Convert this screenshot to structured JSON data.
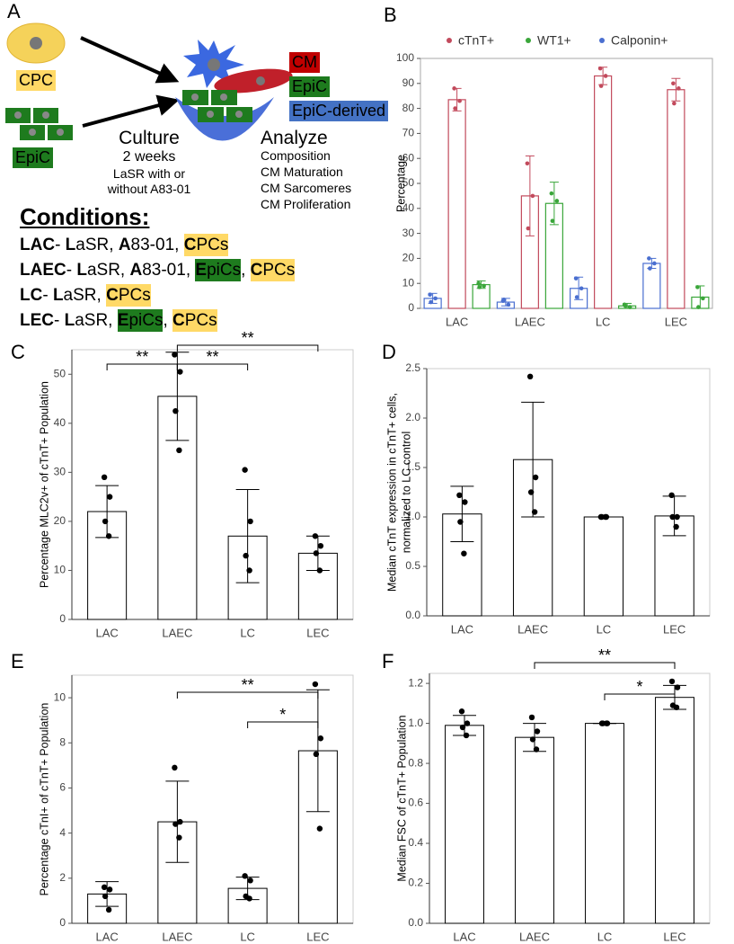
{
  "diagram": {
    "panel": "A",
    "cpc": "CPC",
    "epic": "EpiC",
    "culture": [
      "Culture",
      "2 weeks",
      "LaSR with or",
      "without A83-01"
    ],
    "legend": [
      "CM",
      "EpiC",
      "EpiC-derived"
    ],
    "analyze": [
      "Analyze",
      "Composition",
      "CM Maturation",
      "CM Sarcomeres",
      "CM Proliferation"
    ],
    "conditions_title": "Conditions:",
    "conditions": [
      [
        {
          "t": "LAC",
          "b": true
        },
        {
          "t": "- "
        },
        {
          "t": "L",
          "b": true
        },
        {
          "t": "aSR, "
        },
        {
          "t": "A",
          "b": true
        },
        {
          "t": "83-01, "
        },
        {
          "t": "C",
          "b": true,
          "hl": "yellow"
        },
        {
          "t": "PCs",
          "hl": "yellow"
        }
      ],
      [
        {
          "t": "LAEC",
          "b": true
        },
        {
          "t": "- "
        },
        {
          "t": "L",
          "b": true
        },
        {
          "t": "aSR, "
        },
        {
          "t": "A",
          "b": true
        },
        {
          "t": "83-01, "
        },
        {
          "t": "E",
          "b": true,
          "hl": "green"
        },
        {
          "t": "piCs",
          "hl": "green"
        },
        {
          "t": ", "
        },
        {
          "t": "C",
          "b": true,
          "hl": "yellow"
        },
        {
          "t": "PCs",
          "hl": "yellow"
        }
      ],
      [
        {
          "t": "LC",
          "b": true
        },
        {
          "t": "- "
        },
        {
          "t": "L",
          "b": true
        },
        {
          "t": "aSR, "
        },
        {
          "t": "C",
          "b": true,
          "hl": "yellow"
        },
        {
          "t": "PCs",
          "hl": "yellow"
        }
      ],
      [
        {
          "t": "LEC",
          "b": true
        },
        {
          "t": "- "
        },
        {
          "t": "L",
          "b": true
        },
        {
          "t": "aSR, "
        },
        {
          "t": "E",
          "b": true,
          "hl": "green"
        },
        {
          "t": "piCs",
          "hl": "green"
        },
        {
          "t": ", "
        },
        {
          "t": "C",
          "b": true,
          "hl": "yellow"
        },
        {
          "t": "PCs",
          "hl": "yellow"
        }
      ]
    ]
  },
  "chart_data": [
    {
      "type": "bar",
      "panel": "B",
      "y_label": [
        "Percentage"
      ],
      "categories": [
        "LAC",
        "LAEC",
        "LC",
        "LEC"
      ],
      "ylim": [
        0,
        100
      ],
      "yticks": [
        0,
        10,
        20,
        30,
        40,
        50,
        60,
        70,
        80,
        90,
        100
      ],
      "series": [
        {
          "name": "cTnT+",
          "color": "#c24a5c",
          "values": [
            83.5,
            45,
            93,
            87.5
          ],
          "errors": [
            4.5,
            16,
            3.5,
            4.5
          ],
          "points": [
            [
              88,
              83,
              80
            ],
            [
              58,
              45,
              32
            ],
            [
              96,
              93,
              89
            ],
            [
              90,
              88,
              82
            ]
          ]
        },
        {
          "name": "WT1+",
          "color": "#3aa63a",
          "values": [
            9.5,
            42,
            1,
            4.5
          ],
          "errors": [
            1.5,
            8.5,
            1,
            4.5
          ],
          "points": [
            [
              10,
              9,
              8.5
            ],
            [
              46,
              43,
              35
            ],
            [
              1.5,
              0.5,
              1
            ],
            [
              8.5,
              4,
              0.5
            ]
          ]
        },
        {
          "name": "Calponin+",
          "color": "#4a6fd0",
          "values": [
            4,
            2.5,
            8,
            18
          ],
          "errors": [
            2,
            1.5,
            4.5,
            2
          ],
          "points": [
            [
              5.5,
              4,
              2.5
            ],
            [
              3,
              1.5,
              3.5
            ],
            [
              12,
              8,
              4.5
            ],
            [
              20,
              18,
              16
            ]
          ]
        }
      ]
    },
    {
      "type": "bar",
      "panel": "C",
      "y_label": [
        "Percentage MLC2v+ of cTnT+ Population"
      ],
      "categories": [
        "LAC",
        "LAEC",
        "LC",
        "LEC"
      ],
      "ylim": [
        0,
        55
      ],
      "yticks": [
        0,
        10,
        20,
        30,
        40,
        50
      ],
      "color": "#000000",
      "values": [
        22,
        45.5,
        17,
        13.5
      ],
      "errors": [
        5.3,
        9,
        9.5,
        3.5
      ],
      "points": [
        [
          29,
          25,
          20,
          17
        ],
        [
          54,
          50.5,
          42.5,
          34.5
        ],
        [
          30.5,
          20,
          13,
          10
        ],
        [
          17,
          15,
          13.5,
          10
        ]
      ],
      "brackets": [
        {
          "from": "LAC",
          "to": "LAEC",
          "label": "**"
        },
        {
          "from": "LAEC",
          "to": "LC",
          "label": "**"
        },
        {
          "from": "LAEC",
          "to": "LEC",
          "label": "**"
        }
      ]
    },
    {
      "type": "bar",
      "panel": "D",
      "y_label": [
        "Median cTnT expression in cTnT+ cells,",
        "normalized to LC control"
      ],
      "categories": [
        "LAC",
        "LAEC",
        "LC",
        "LEC"
      ],
      "ylim": [
        0,
        2.5
      ],
      "yticks": [
        {
          "value": 0,
          "label": "0.0"
        },
        0.5,
        {
          "value": 1,
          "label": "1.0"
        },
        1.5,
        {
          "value": 2,
          "label": "2.0"
        },
        2.5
      ],
      "color": "#000000",
      "values": [
        1.03,
        1.58,
        1.0,
        1.01
      ],
      "errors": [
        0.28,
        0.58,
        0,
        0.2
      ],
      "points": [
        [
          1.22,
          1.15,
          0.95,
          0.63
        ],
        [
          2.42,
          1.4,
          1.25,
          1.05
        ],
        [
          1,
          1,
          1,
          1
        ],
        [
          1.22,
          1.0,
          1.0,
          0.9
        ]
      ]
    },
    {
      "type": "bar",
      "panel": "E",
      "y_label": [
        "Percentage cTnI+ of cTnT+ Population"
      ],
      "categories": [
        "LAC",
        "LAEC",
        "LC",
        "LEC"
      ],
      "ylim": [
        0,
        11
      ],
      "yticks": [
        0,
        2,
        4,
        6,
        8,
        10
      ],
      "color": "#000000",
      "values": [
        1.3,
        4.5,
        1.55,
        7.65
      ],
      "errors": [
        0.55,
        1.8,
        0.5,
        2.7
      ],
      "points": [
        [
          1.6,
          1.5,
          1.2,
          0.6
        ],
        [
          6.9,
          4.5,
          4.4,
          3.8
        ],
        [
          2.1,
          1.9,
          1.2,
          1.1
        ],
        [
          10.6,
          8.2,
          7.5,
          4.2
        ]
      ],
      "brackets": [
        {
          "from": "LC",
          "to": "LEC",
          "label": "*"
        },
        {
          "from": "LAEC",
          "to": "LEC",
          "label": "**"
        }
      ]
    },
    {
      "type": "bar",
      "panel": "F",
      "y_label": [
        "Median FSC of cTnT+ Population"
      ],
      "categories": [
        "LAC",
        "LAEC",
        "LC",
        "LEC"
      ],
      "ylim": [
        0,
        1.25
      ],
      "yticks": [
        {
          "value": 0,
          "label": "0.0"
        },
        0.2,
        0.4,
        0.6,
        0.8,
        {
          "value": 1,
          "label": "1.0"
        },
        1.2
      ],
      "color": "#000000",
      "values": [
        0.99,
        0.93,
        1.0,
        1.13
      ],
      "errors": [
        0.05,
        0.07,
        0,
        0.06
      ],
      "points": [
        [
          1.06,
          1.0,
          0.98,
          0.94
        ],
        [
          1.03,
          0.96,
          0.92,
          0.87
        ],
        [
          1,
          1,
          1,
          1
        ],
        [
          1.21,
          1.18,
          1.09,
          1.08
        ]
      ],
      "brackets": [
        {
          "from": "LC",
          "to": "LEC",
          "label": "*"
        },
        {
          "from": "LAEC",
          "to": "LEC",
          "label": "**"
        }
      ]
    }
  ]
}
